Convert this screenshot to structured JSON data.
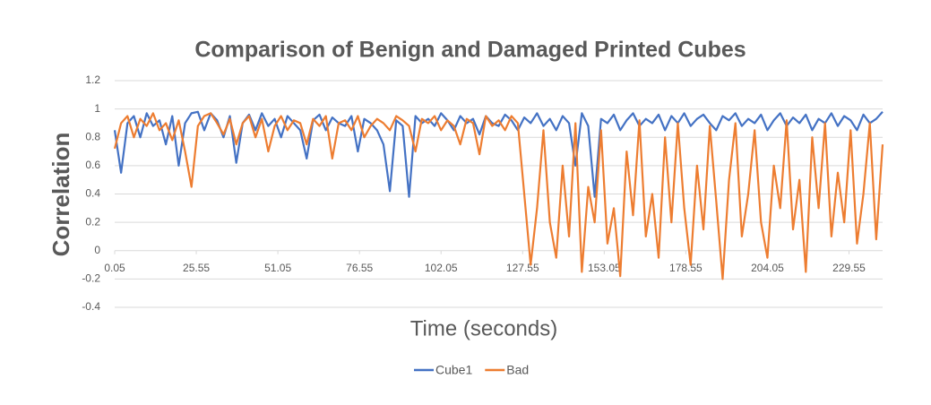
{
  "chart_data": {
    "type": "line",
    "title": "Comparison of Benign and Damaged Printed Cubes",
    "xlabel": "Time  (seconds)",
    "ylabel": "Correlation",
    "x": [
      0.05,
      2.05,
      4.05,
      6.05,
      8.05,
      10.05,
      12.05,
      14.05,
      16.05,
      18.05,
      20.05,
      22.05,
      24.05,
      26.05,
      28.05,
      30.05,
      32.05,
      34.05,
      36.05,
      38.05,
      40.05,
      42.05,
      44.05,
      46.05,
      48.05,
      50.05,
      52.05,
      54.05,
      56.05,
      58.05,
      60.05,
      62.05,
      64.05,
      66.05,
      68.05,
      70.05,
      72.05,
      74.05,
      76.05,
      78.05,
      80.05,
      82.05,
      84.05,
      86.05,
      88.05,
      90.05,
      92.05,
      94.05,
      96.05,
      98.05,
      100.05,
      102.05,
      104.05,
      106.05,
      108.05,
      110.05,
      112.05,
      114.05,
      116.05,
      118.05,
      120.05,
      122.05,
      124.05,
      126.05,
      128.05,
      130.05,
      132.05,
      134.05,
      136.05,
      138.05,
      140.05,
      142.05,
      144.05,
      146.05,
      148.05,
      150.05,
      152.05,
      154.05,
      156.05,
      158.05,
      160.05,
      162.05,
      164.05,
      166.05,
      168.05,
      170.05,
      172.05,
      174.05,
      176.05,
      178.05,
      180.05,
      182.05,
      184.05,
      186.05,
      188.05,
      190.05,
      192.05,
      194.05,
      196.05,
      198.05,
      200.05,
      202.05,
      204.05,
      206.05,
      208.05,
      210.05,
      212.05,
      214.05,
      216.05,
      218.05,
      220.05,
      222.05,
      224.05,
      226.05,
      228.05,
      230.05,
      232.05,
      234.05,
      236.05,
      238.05,
      240.05
    ],
    "series": [
      {
        "name": "Cube1",
        "color": "#4472c4",
        "values": [
          0.85,
          0.55,
          0.9,
          0.95,
          0.8,
          0.97,
          0.88,
          0.92,
          0.75,
          0.95,
          0.6,
          0.9,
          0.97,
          0.98,
          0.85,
          0.97,
          0.92,
          0.8,
          0.95,
          0.62,
          0.9,
          0.96,
          0.85,
          0.97,
          0.88,
          0.93,
          0.8,
          0.95,
          0.9,
          0.85,
          0.65,
          0.92,
          0.96,
          0.85,
          0.94,
          0.9,
          0.88,
          0.95,
          0.7,
          0.93,
          0.9,
          0.85,
          0.75,
          0.42,
          0.92,
          0.88,
          0.38,
          0.95,
          0.9,
          0.93,
          0.88,
          0.97,
          0.92,
          0.85,
          0.95,
          0.9,
          0.93,
          0.82,
          0.95,
          0.9,
          0.88,
          0.96,
          0.92,
          0.85,
          0.94,
          0.9,
          0.97,
          0.88,
          0.93,
          0.85,
          0.95,
          0.9,
          0.6,
          0.97,
          0.88,
          0.38,
          0.93,
          0.9,
          0.96,
          0.85,
          0.92,
          0.97,
          0.88,
          0.93,
          0.9,
          0.96,
          0.85,
          0.95,
          0.9,
          0.97,
          0.88,
          0.93,
          0.96,
          0.9,
          0.85,
          0.95,
          0.92,
          0.97,
          0.88,
          0.93,
          0.9,
          0.96,
          0.85,
          0.92,
          0.97,
          0.88,
          0.94,
          0.9,
          0.96,
          0.85,
          0.93,
          0.9,
          0.97,
          0.88,
          0.95,
          0.92,
          0.85,
          0.96,
          0.9,
          0.93,
          0.98
        ]
      },
      {
        "name": "Bad",
        "color": "#ed7d31",
        "values": [
          0.72,
          0.9,
          0.95,
          0.8,
          0.93,
          0.88,
          0.97,
          0.85,
          0.9,
          0.78,
          0.92,
          0.7,
          0.45,
          0.88,
          0.95,
          0.97,
          0.9,
          0.82,
          0.93,
          0.75,
          0.9,
          0.95,
          0.8,
          0.93,
          0.7,
          0.88,
          0.95,
          0.85,
          0.92,
          0.9,
          0.75,
          0.93,
          0.88,
          0.95,
          0.65,
          0.9,
          0.92,
          0.85,
          0.95,
          0.8,
          0.88,
          0.93,
          0.9,
          0.85,
          0.95,
          0.92,
          0.88,
          0.7,
          0.93,
          0.9,
          0.95,
          0.85,
          0.92,
          0.88,
          0.75,
          0.93,
          0.9,
          0.68,
          0.95,
          0.88,
          0.92,
          0.85,
          0.95,
          0.9,
          0.4,
          -0.1,
          0.3,
          0.85,
          0.2,
          -0.05,
          0.6,
          0.1,
          0.9,
          -0.15,
          0.45,
          0.2,
          0.85,
          0.05,
          0.3,
          -0.18,
          0.7,
          0.25,
          0.92,
          0.1,
          0.4,
          -0.05,
          0.8,
          0.2,
          0.9,
          0.3,
          -0.1,
          0.6,
          0.15,
          0.88,
          0.35,
          -0.2,
          0.5,
          0.9,
          0.1,
          0.4,
          0.85,
          0.2,
          -0.05,
          0.6,
          0.3,
          0.92,
          0.15,
          0.5,
          -0.15,
          0.8,
          0.3,
          0.9,
          0.1,
          0.55,
          0.2,
          0.85,
          0.05,
          0.4,
          0.9,
          0.08,
          0.75
        ]
      }
    ],
    "xlim": [
      0.05,
      240.05
    ],
    "xticks": [
      0.05,
      25.55,
      51.05,
      76.55,
      102.05,
      127.55,
      153.05,
      178.55,
      204.05,
      229.55
    ],
    "ylim": [
      -0.4,
      1.2
    ],
    "yticks": [
      -0.4,
      -0.2,
      0,
      0.2,
      0.4,
      0.6,
      0.8,
      1,
      1.2
    ],
    "grid": true,
    "legend": "bottom"
  }
}
